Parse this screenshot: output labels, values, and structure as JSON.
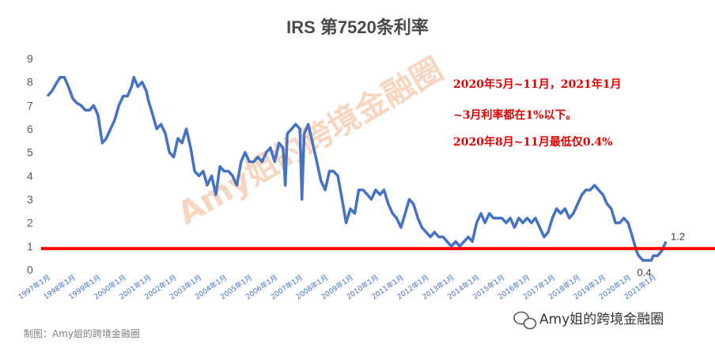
{
  "chart_data": {
    "type": "line",
    "title": "IRS 第7520条利率",
    "ylim": [
      0,
      9
    ],
    "yticks": [
      "0",
      "1",
      "2",
      "3",
      "4",
      "5",
      "6",
      "7",
      "8",
      "9"
    ],
    "xticks": [
      "1997年1月",
      "1998年1月",
      "1999年1月",
      "2000年1月",
      "2001年1月",
      "2002年1月",
      "2003年1月",
      "2004年1月",
      "2005年1月",
      "2006年1月",
      "2007年1月",
      "2008年1月",
      "2009年1月",
      "2010年1月",
      "2011年1月",
      "2012年1月",
      "2013年1月",
      "2014年1月",
      "2015年1月",
      "2016年1月",
      "2017年1月",
      "2018年1月",
      "2019年1月",
      "2020年1月",
      "2021年1月"
    ],
    "xlim": [
      1997.0,
      2021.75
    ],
    "grid": false,
    "series": [
      {
        "color": "#4472c4",
        "points": [
          [
            1997.0,
            7.4
          ],
          [
            1997.17,
            7.6
          ],
          [
            1997.33,
            7.9
          ],
          [
            1997.5,
            8.2
          ],
          [
            1997.67,
            8.2
          ],
          [
            1997.83,
            7.8
          ],
          [
            1998.0,
            7.3
          ],
          [
            1998.17,
            7.1
          ],
          [
            1998.33,
            7.0
          ],
          [
            1998.5,
            6.8
          ],
          [
            1998.67,
            6.8
          ],
          [
            1998.83,
            7.0
          ],
          [
            1999.0,
            6.6
          ],
          [
            1999.17,
            5.4
          ],
          [
            1999.33,
            5.6
          ],
          [
            1999.5,
            6.0
          ],
          [
            1999.67,
            6.4
          ],
          [
            1999.83,
            7.0
          ],
          [
            2000.0,
            7.4
          ],
          [
            2000.17,
            7.4
          ],
          [
            2000.33,
            7.8
          ],
          [
            2000.42,
            8.2
          ],
          [
            2000.58,
            7.8
          ],
          [
            2000.75,
            8.0
          ],
          [
            2000.92,
            7.6
          ],
          [
            2001.0,
            7.2
          ],
          [
            2001.17,
            6.6
          ],
          [
            2001.33,
            6.0
          ],
          [
            2001.5,
            6.2
          ],
          [
            2001.67,
            5.8
          ],
          [
            2001.83,
            5.0
          ],
          [
            2002.0,
            4.8
          ],
          [
            2002.17,
            5.6
          ],
          [
            2002.33,
            5.4
          ],
          [
            2002.5,
            6.0
          ],
          [
            2002.67,
            5.2
          ],
          [
            2002.83,
            4.2
          ],
          [
            2003.0,
            4.0
          ],
          [
            2003.17,
            4.2
          ],
          [
            2003.33,
            3.6
          ],
          [
            2003.5,
            4.0
          ],
          [
            2003.67,
            3.2
          ],
          [
            2003.83,
            4.4
          ],
          [
            2004.0,
            4.2
          ],
          [
            2004.17,
            4.2
          ],
          [
            2004.33,
            4.0
          ],
          [
            2004.5,
            3.6
          ],
          [
            2004.67,
            4.6
          ],
          [
            2004.83,
            5.0
          ],
          [
            2005.0,
            4.6
          ],
          [
            2005.17,
            4.6
          ],
          [
            2005.33,
            4.8
          ],
          [
            2005.5,
            4.6
          ],
          [
            2005.67,
            5.0
          ],
          [
            2005.83,
            5.2
          ],
          [
            2006.0,
            4.6
          ],
          [
            2006.17,
            5.4
          ],
          [
            2006.33,
            5.2
          ],
          [
            2006.42,
            3.6
          ],
          [
            2006.5,
            5.8
          ],
          [
            2006.67,
            6.0
          ],
          [
            2006.83,
            6.2
          ],
          [
            2007.0,
            6.0
          ],
          [
            2007.08,
            3.0
          ],
          [
            2007.17,
            5.8
          ],
          [
            2007.33,
            6.2
          ],
          [
            2007.5,
            5.4
          ],
          [
            2007.67,
            4.6
          ],
          [
            2007.83,
            3.8
          ],
          [
            2008.0,
            3.4
          ],
          [
            2008.17,
            4.2
          ],
          [
            2008.33,
            4.2
          ],
          [
            2008.5,
            4.0
          ],
          [
            2008.67,
            3.0
          ],
          [
            2008.83,
            2.0
          ],
          [
            2009.0,
            2.6
          ],
          [
            2009.17,
            2.4
          ],
          [
            2009.33,
            3.4
          ],
          [
            2009.5,
            3.4
          ],
          [
            2009.67,
            3.2
          ],
          [
            2009.83,
            3.0
          ],
          [
            2010.0,
            3.4
          ],
          [
            2010.17,
            3.2
          ],
          [
            2010.33,
            3.4
          ],
          [
            2010.5,
            2.8
          ],
          [
            2010.67,
            2.4
          ],
          [
            2010.83,
            2.2
          ],
          [
            2011.0,
            1.8
          ],
          [
            2011.17,
            2.4
          ],
          [
            2011.33,
            3.0
          ],
          [
            2011.5,
            2.8
          ],
          [
            2011.67,
            2.2
          ],
          [
            2011.83,
            1.8
          ],
          [
            2012.0,
            1.6
          ],
          [
            2012.17,
            1.4
          ],
          [
            2012.33,
            1.6
          ],
          [
            2012.5,
            1.4
          ],
          [
            2012.67,
            1.4
          ],
          [
            2012.83,
            1.2
          ],
          [
            2013.0,
            1.0
          ],
          [
            2013.17,
            1.2
          ],
          [
            2013.33,
            1.0
          ],
          [
            2013.5,
            1.2
          ],
          [
            2013.67,
            1.4
          ],
          [
            2013.83,
            1.2
          ],
          [
            2014.0,
            2.0
          ],
          [
            2014.17,
            2.4
          ],
          [
            2014.33,
            2.0
          ],
          [
            2014.5,
            2.4
          ],
          [
            2014.67,
            2.2
          ],
          [
            2014.83,
            2.2
          ],
          [
            2015.0,
            2.2
          ],
          [
            2015.17,
            2.0
          ],
          [
            2015.33,
            2.2
          ],
          [
            2015.5,
            1.8
          ],
          [
            2015.67,
            2.2
          ],
          [
            2015.83,
            2.0
          ],
          [
            2016.0,
            2.2
          ],
          [
            2016.17,
            2.0
          ],
          [
            2016.33,
            2.2
          ],
          [
            2016.5,
            1.8
          ],
          [
            2016.67,
            1.4
          ],
          [
            2016.83,
            1.6
          ],
          [
            2017.0,
            2.2
          ],
          [
            2017.17,
            2.6
          ],
          [
            2017.33,
            2.4
          ],
          [
            2017.5,
            2.6
          ],
          [
            2017.67,
            2.2
          ],
          [
            2017.83,
            2.4
          ],
          [
            2018.0,
            2.8
          ],
          [
            2018.17,
            3.2
          ],
          [
            2018.33,
            3.4
          ],
          [
            2018.5,
            3.4
          ],
          [
            2018.67,
            3.6
          ],
          [
            2018.83,
            3.4
          ],
          [
            2019.0,
            3.2
          ],
          [
            2019.17,
            2.8
          ],
          [
            2019.33,
            2.6
          ],
          [
            2019.5,
            2.0
          ],
          [
            2019.67,
            2.0
          ],
          [
            2019.83,
            2.2
          ],
          [
            2020.0,
            2.0
          ],
          [
            2020.17,
            1.4
          ],
          [
            2020.33,
            0.8
          ],
          [
            2020.42,
            0.6
          ],
          [
            2020.58,
            0.4
          ],
          [
            2020.75,
            0.4
          ],
          [
            2020.92,
            0.4
          ],
          [
            2021.0,
            0.6
          ],
          [
            2021.17,
            0.6
          ],
          [
            2021.33,
            0.8
          ],
          [
            2021.5,
            1.2
          ]
        ]
      }
    ],
    "reference_line": {
      "value": 0.9,
      "color": "#ff0000"
    },
    "data_labels": [
      {
        "text": "1.2",
        "x": 2021.5,
        "y": 1.2
      },
      {
        "text": "0.4",
        "x": 2020.92,
        "y": 0.4
      }
    ],
    "annotations": [
      "2020年5月~11月，2021年1月",
      "~3月利率都在1%以下。",
      "2020年8月~11月最低仅0.4%"
    ],
    "watermark": "Amy姐的跨境金融圈"
  },
  "footer": {
    "source": "制图：Amy姐的跨境金融圈",
    "brand": "Amy姐的跨境金融圈"
  }
}
